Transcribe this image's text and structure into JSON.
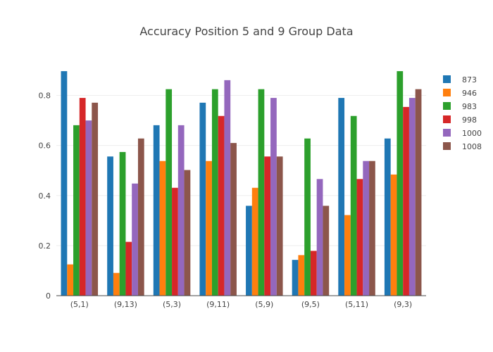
{
  "chart_data": {
    "type": "bar",
    "title": "Accuracy Position 5 and 9 Group Data",
    "xlabel": "",
    "ylabel": "",
    "categories": [
      "(5,1)",
      "(9,13)",
      "(5,3)",
      "(9,11)",
      "(5,9)",
      "(9,5)",
      "(5,11)",
      "(9,3)"
    ],
    "ylim": [
      0,
      0.9
    ],
    "yticks": [
      0,
      0.2,
      0.4,
      0.6,
      0.8
    ],
    "ytick_labels": [
      "0",
      "0.2",
      "0.4",
      "0.6",
      "0.8"
    ],
    "grid": true,
    "legend_position": "top-right",
    "series": [
      {
        "name": "873",
        "color": "#1f77b4",
        "values": [
          0.897,
          0.556,
          0.681,
          0.771,
          0.359,
          0.143,
          0.79,
          0.628
        ]
      },
      {
        "name": "946",
        "color": "#ff7f0e",
        "values": [
          0.125,
          0.091,
          0.538,
          0.538,
          0.431,
          0.162,
          0.322,
          0.484
        ]
      },
      {
        "name": "983",
        "color": "#2ca02c",
        "values": [
          0.681,
          0.574,
          0.825,
          0.825,
          0.825,
          0.628,
          0.718,
          0.897
        ]
      },
      {
        "name": "998",
        "color": "#d62728",
        "values": [
          0.79,
          0.215,
          0.431,
          0.718,
          0.556,
          0.179,
          0.466,
          0.754
        ]
      },
      {
        "name": "1000",
        "color": "#9467bd",
        "values": [
          0.7,
          0.448,
          0.681,
          0.861,
          0.79,
          0.466,
          0.538,
          0.79
        ]
      },
      {
        "name": "1008",
        "color": "#8c564b",
        "values": [
          0.771,
          0.628,
          0.502,
          0.61,
          0.556,
          0.359,
          0.538,
          0.825
        ]
      }
    ]
  }
}
